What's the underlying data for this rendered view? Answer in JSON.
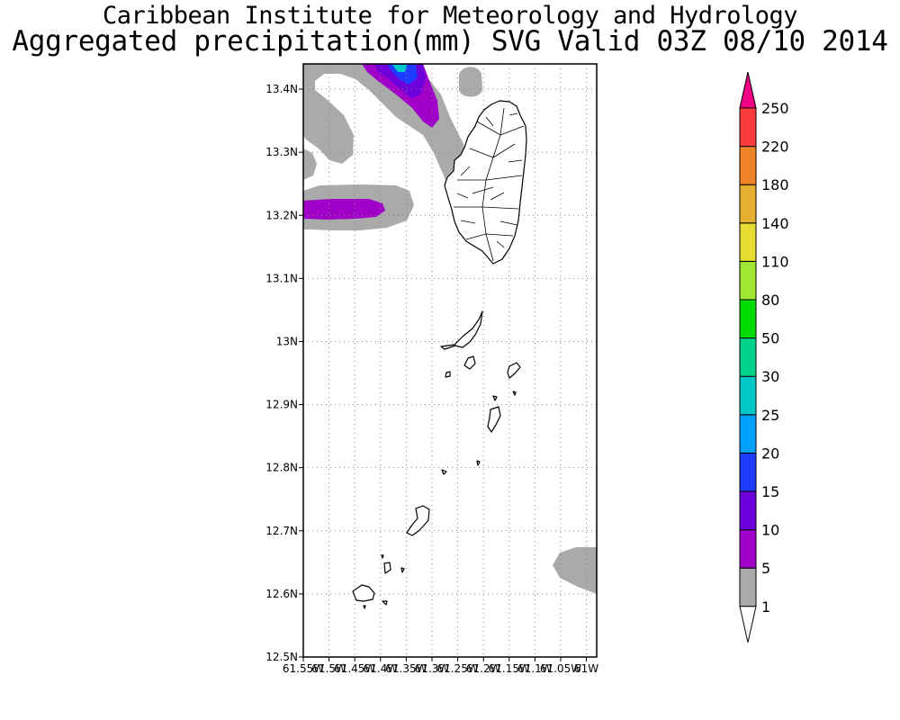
{
  "header": {
    "line1": "Caribbean Institute for Meteorology and Hydrology",
    "line2": "Aggregated precipitation(mm) SVG Valid 03Z 08/10 2014"
  },
  "map": {
    "lat_range": [
      12.5,
      13.44
    ],
    "lon_range": [
      -61.55,
      -60.98
    ],
    "lat_labels": [
      "12.5N",
      "12.6N",
      "12.7N",
      "12.8N",
      "12.9N",
      "13N",
      "13.1N",
      "13.2N",
      "13.3N",
      "13.4N"
    ],
    "lon_labels": [
      "61.55W",
      "61.5W",
      "61.45W",
      "61.4W",
      "61.35W",
      "61.3W",
      "61.25W",
      "61.2W",
      "61.15W",
      "61.1W",
      "61.05W",
      "61W"
    ],
    "grid": true,
    "land_color": "#ffffff",
    "coastline_color": "#000000"
  },
  "legend": {
    "placement": "right",
    "levels": [
      "1",
      "5",
      "10",
      "15",
      "20",
      "25",
      "30",
      "50",
      "80",
      "110",
      "140",
      "180",
      "220",
      "250"
    ],
    "colors": [
      "#ffffff",
      "#aaaaaa",
      "#a000c8",
      "#6e00dc",
      "#1e3cff",
      "#00a0ff",
      "#00c8c8",
      "#00d28c",
      "#00dc00",
      "#a0e632",
      "#e6dc32",
      "#e6af2d",
      "#f08228",
      "#fa3c3c",
      "#f00082"
    ]
  }
}
